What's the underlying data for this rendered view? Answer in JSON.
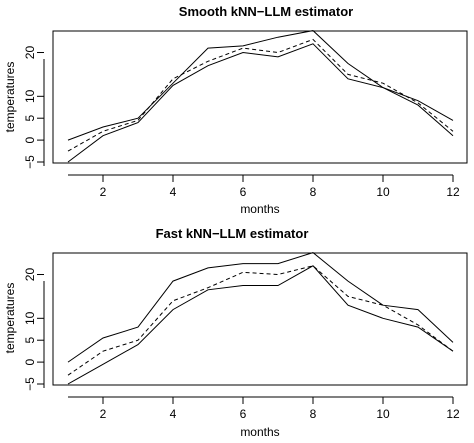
{
  "chart_data": [
    {
      "type": "line",
      "title": "Smooth kNN−LLM estimator",
      "xlabel": "months",
      "ylabel": "temperatures",
      "xlim": [
        1,
        12
      ],
      "ylim": [
        -5,
        24
      ],
      "x_ticks": [
        "2",
        "4",
        "6",
        "8",
        "10",
        "12"
      ],
      "y_ticks": [
        "−5",
        "0",
        "5",
        "10",
        "20"
      ],
      "grid": false,
      "x": [
        1,
        2,
        3,
        4,
        5,
        6,
        7,
        8,
        9,
        10,
        11,
        12
      ],
      "series": [
        {
          "style": "solid",
          "values": [
            0,
            3,
            5,
            13,
            21,
            21.5,
            23.5,
            25,
            17.5,
            12,
            9,
            4.5
          ]
        },
        {
          "style": "dashed",
          "values": [
            -2.5,
            2,
            4.5,
            14,
            18,
            21,
            20,
            23,
            15,
            13,
            8.5,
            2
          ]
        },
        {
          "style": "solid",
          "values": [
            -5,
            1,
            4,
            12.5,
            17,
            20,
            19,
            22,
            14,
            12,
            8,
            1
          ]
        }
      ]
    },
    {
      "type": "line",
      "title": "Fast  kNN−LLM estimator",
      "xlabel": "months",
      "ylabel": "temperatures",
      "xlim": [
        1,
        12
      ],
      "ylim": [
        -5,
        24
      ],
      "x_ticks": [
        "2",
        "4",
        "6",
        "8",
        "10",
        "12"
      ],
      "y_ticks": [
        "−5",
        "0",
        "5",
        "10",
        "20"
      ],
      "grid": false,
      "x": [
        1,
        2,
        3,
        4,
        5,
        6,
        7,
        8,
        9,
        10,
        11,
        12
      ],
      "series": [
        {
          "style": "solid",
          "values": [
            0,
            5.5,
            8,
            18.5,
            21.5,
            22.5,
            22.5,
            25,
            18.5,
            13,
            12,
            4.5
          ]
        },
        {
          "style": "dashed",
          "values": [
            -3,
            2.5,
            5,
            14,
            17,
            20.5,
            20,
            22,
            15,
            13,
            8.5,
            2.5
          ]
        },
        {
          "style": "solid",
          "values": [
            -5,
            -0.5,
            4,
            12,
            16.5,
            17.5,
            17.5,
            22,
            13,
            10,
            8,
            2.5
          ]
        }
      ]
    }
  ]
}
